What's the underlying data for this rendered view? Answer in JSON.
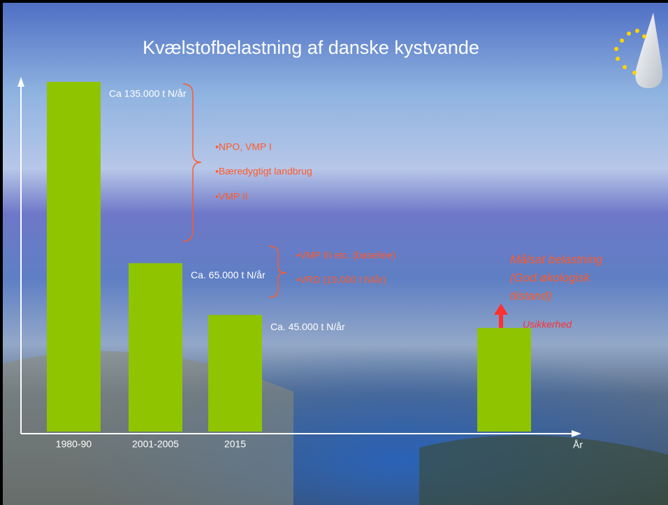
{
  "chart_data": {
    "type": "bar",
    "title": "Kvælstofbelastning af danske kystvande",
    "categories": [
      "1980-90",
      "2001-2005",
      "2015",
      null
    ],
    "values": [
      135000,
      65000,
      45000,
      40000
    ],
    "value_labels": [
      "Ca 135.000 t N/år",
      "Ca. 65.000 t N/år",
      "Ca. 45.000 t N/år",
      null
    ],
    "color": "#8fc400",
    "ylim": [
      0,
      135000
    ],
    "x_label": "År",
    "annotations": [
      "•NPO, VMP I",
      "•Bæredygtigt landbrug",
      "•VMP II",
      "•VMP III etc. (baseline)",
      "•VRD (19.000 t N/år)"
    ],
    "target_label": [
      "Målsat belastning",
      "(God økologisk",
      "tilstand)"
    ],
    "uncertainty_label": "Usikkerhed"
  }
}
